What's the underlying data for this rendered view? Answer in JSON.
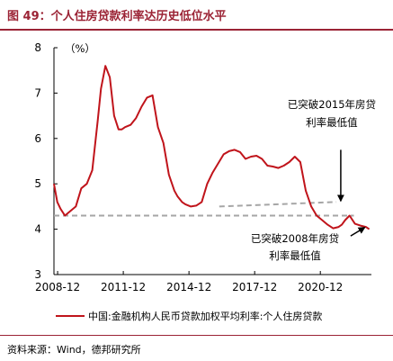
{
  "title": "图 49：个人住房贷款利率达历史低位水平",
  "source": "资料来源：Wind，德邦研究所",
  "colors": {
    "accent": "#9b2335",
    "series": "#c0141b",
    "reference": "#a6a6a6",
    "arrow": "#000000"
  },
  "chart_data": {
    "type": "line",
    "unit_label": "（%）",
    "ylim": [
      3,
      8
    ],
    "yticks": [
      "3",
      "4",
      "5",
      "6",
      "7",
      "8"
    ],
    "xlim": [
      2008.75,
      2023.25
    ],
    "xticks": [
      {
        "x": 2008.917,
        "label": "2008-12"
      },
      {
        "x": 2011.917,
        "label": "2011-12"
      },
      {
        "x": 2014.917,
        "label": "2014-12"
      },
      {
        "x": 2017.917,
        "label": "2017-12"
      },
      {
        "x": 2020.917,
        "label": "2020-12"
      }
    ],
    "legend": {
      "placement": "bottom",
      "label": "中国:金融机构人民币贷款加权平均利率:个人住房贷款"
    },
    "series": [
      {
        "name": "中国:金融机构人民币贷款加权平均利率:个人住房贷款",
        "x": [
          2008.75,
          2008.9,
          2009.05,
          2009.25,
          2009.5,
          2009.75,
          2010.0,
          2010.25,
          2010.5,
          2010.75,
          2010.9,
          2011.1,
          2011.3,
          2011.5,
          2011.7,
          2011.85,
          2012.0,
          2012.25,
          2012.5,
          2012.75,
          2013.0,
          2013.25,
          2013.5,
          2013.75,
          2014.0,
          2014.25,
          2014.4,
          2014.6,
          2014.75,
          2015.0,
          2015.25,
          2015.5,
          2015.75,
          2016.0,
          2016.25,
          2016.5,
          2016.75,
          2017.0,
          2017.25,
          2017.5,
          2017.75,
          2018.0,
          2018.25,
          2018.5,
          2018.75,
          2019.0,
          2019.25,
          2019.5,
          2019.75,
          2020.0,
          2020.25,
          2020.5,
          2020.75,
          2021.0,
          2021.25,
          2021.5,
          2021.75,
          2021.9,
          2022.05,
          2022.25,
          2022.5,
          2022.75,
          2023.0,
          2023.15
        ],
        "y": [
          5.0,
          4.6,
          4.45,
          4.3,
          4.4,
          4.5,
          4.9,
          5.0,
          5.3,
          6.4,
          7.1,
          7.6,
          7.35,
          6.5,
          6.2,
          6.2,
          6.25,
          6.3,
          6.45,
          6.7,
          6.9,
          6.95,
          6.25,
          5.9,
          5.2,
          4.85,
          4.72,
          4.6,
          4.55,
          4.5,
          4.52,
          4.6,
          5.0,
          5.25,
          5.45,
          5.65,
          5.72,
          5.75,
          5.7,
          5.55,
          5.6,
          5.62,
          5.55,
          5.4,
          5.38,
          5.35,
          5.4,
          5.48,
          5.6,
          5.48,
          4.85,
          4.5,
          4.3,
          4.2,
          4.1,
          4.02,
          4.05,
          4.1,
          4.2,
          4.3,
          4.12,
          4.08,
          4.05,
          4.0
        ]
      }
    ],
    "reference_lines": [
      {
        "x": [
          2008.75,
          2022.45
        ],
        "y": [
          4.3,
          4.3
        ]
      },
      {
        "x": [
          2016.3,
          2021.65
        ],
        "y": [
          4.5,
          4.6
        ]
      }
    ],
    "annotations": [
      {
        "text": [
          "已突破2015年房贷",
          "利率最低值"
        ],
        "arrow_from": [
          2021.85,
          5.75
        ],
        "arrow_to": [
          2021.85,
          4.62
        ]
      },
      {
        "text": [
          "已突破2008年房贷",
          "利率最低值"
        ],
        "arrow_from": [
          2022.3,
          3.85
        ],
        "arrow_to": [
          2022.95,
          4.04
        ]
      }
    ]
  }
}
